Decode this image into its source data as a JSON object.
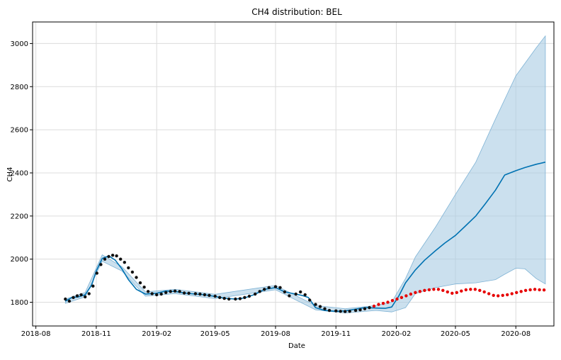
{
  "chart_data": {
    "type": "line",
    "title": "CH4 distribution: BEL",
    "xlabel": "Date",
    "ylabel": "CH4",
    "xlim": [
      "2018-07-27",
      "2020-09-28"
    ],
    "ylim": [
      1690,
      3100
    ],
    "grid": true,
    "x_ticks": [
      "2018-08",
      "2018-11",
      "2019-02",
      "2019-05",
      "2019-08",
      "2019-11",
      "2020-02",
      "2020-05",
      "2020-08"
    ],
    "y_ticks": [
      1800,
      2000,
      2200,
      2400,
      2600,
      2800,
      3000
    ],
    "colors": {
      "forecast": "#0072B2",
      "band": "#a9cce3",
      "band_edge": "#7fb3d5",
      "observed": "#111111",
      "actual_future": "#e60000",
      "grid": "#dcdcdc"
    },
    "series": [
      {
        "kind": "forecast",
        "x": [
          "2018-09-15",
          "2018-09-25",
          "2018-10-05",
          "2018-10-15",
          "2018-10-25",
          "2018-11-01",
          "2018-11-10",
          "2018-11-20",
          "2018-11-30",
          "2018-12-10",
          "2018-12-20",
          "2019-01-01",
          "2019-01-15",
          "2019-02-01",
          "2019-02-15",
          "2019-03-01",
          "2019-03-15",
          "2019-04-01",
          "2019-04-15",
          "2019-05-01",
          "2019-05-15",
          "2019-06-01",
          "2019-06-15",
          "2019-07-01",
          "2019-07-15",
          "2019-08-01",
          "2019-08-15",
          "2019-09-01",
          "2019-09-10",
          "2019-09-20",
          "2019-10-01",
          "2019-10-15",
          "2019-11-01",
          "2019-11-15",
          "2019-12-01",
          "2019-12-15",
          "2020-01-01",
          "2020-01-15",
          "2020-01-25",
          "2020-02-05",
          "2020-02-15",
          "2020-03-01",
          "2020-03-15",
          "2020-04-01",
          "2020-04-15",
          "2020-05-01",
          "2020-05-15",
          "2020-06-01",
          "2020-06-15",
          "2020-07-01",
          "2020-07-15",
          "2020-08-01",
          "2020-08-15",
          "2020-09-01",
          "2020-09-15"
        ],
        "y": [
          1805,
          1822,
          1825,
          1835,
          1880,
          1945,
          2003,
          2015,
          1995,
          1955,
          1905,
          1860,
          1838,
          1842,
          1852,
          1850,
          1843,
          1838,
          1835,
          1827,
          1819,
          1815,
          1820,
          1837,
          1860,
          1868,
          1848,
          1838,
          1832,
          1822,
          1775,
          1762,
          1758,
          1760,
          1768,
          1775,
          1773,
          1772,
          1778,
          1830,
          1890,
          1950,
          1995,
          2040,
          2075,
          2110,
          2150,
          2200,
          2255,
          2320,
          2390,
          2410,
          2425,
          2440,
          2450
        ]
      },
      {
        "kind": "band_upper",
        "x": [
          "2018-09-15",
          "2018-10-15",
          "2018-11-10",
          "2018-12-10",
          "2019-01-15",
          "2019-03-01",
          "2019-05-01",
          "2019-08-01",
          "2019-10-01",
          "2019-11-15",
          "2020-01-01",
          "2020-01-25",
          "2020-02-15",
          "2020-03-01",
          "2020-04-01",
          "2020-05-01",
          "2020-06-01",
          "2020-07-01",
          "2020-08-01",
          "2020-09-01",
          "2020-09-15"
        ],
        "y": [
          1815,
          1845,
          2020,
          1965,
          1848,
          1860,
          1837,
          1878,
          1785,
          1770,
          1785,
          1800,
          1910,
          2010,
          2150,
          2300,
          2450,
          2650,
          2850,
          2980,
          3035
        ]
      },
      {
        "kind": "band_lower",
        "x": [
          "2018-09-15",
          "2018-10-15",
          "2018-11-10",
          "2018-12-10",
          "2019-01-15",
          "2019-03-01",
          "2019-05-01",
          "2019-08-01",
          "2019-10-01",
          "2019-11-15",
          "2020-01-01",
          "2020-01-25",
          "2020-02-15",
          "2020-03-01",
          "2020-04-01",
          "2020-05-01",
          "2020-06-01",
          "2020-07-01",
          "2020-07-15",
          "2020-08-01",
          "2020-08-15",
          "2020-09-01",
          "2020-09-15"
        ],
        "y": [
          1795,
          1825,
          1990,
          1945,
          1828,
          1840,
          1817,
          1858,
          1765,
          1750,
          1762,
          1755,
          1775,
          1840,
          1868,
          1885,
          1890,
          1905,
          1930,
          1958,
          1955,
          1910,
          1885
        ]
      },
      {
        "kind": "observed",
        "x": [
          "2018-09-15",
          "2018-09-21",
          "2018-09-27",
          "2018-10-03",
          "2018-10-09",
          "2018-10-15",
          "2018-10-21",
          "2018-10-27",
          "2018-11-02",
          "2018-11-08",
          "2018-11-14",
          "2018-11-20",
          "2018-11-26",
          "2018-12-02",
          "2018-12-08",
          "2018-12-14",
          "2018-12-20",
          "2018-12-26",
          "2019-01-01",
          "2019-01-07",
          "2019-01-13",
          "2019-01-19",
          "2019-01-25",
          "2019-02-01",
          "2019-02-08",
          "2019-02-15",
          "2019-02-22",
          "2019-03-01",
          "2019-03-08",
          "2019-03-15",
          "2019-03-22",
          "2019-04-01",
          "2019-04-08",
          "2019-04-15",
          "2019-04-22",
          "2019-05-01",
          "2019-05-08",
          "2019-05-15",
          "2019-05-22",
          "2019-06-01",
          "2019-06-08",
          "2019-06-15",
          "2019-06-22",
          "2019-07-01",
          "2019-07-08",
          "2019-07-15",
          "2019-07-22",
          "2019-08-01",
          "2019-08-08",
          "2019-08-15",
          "2019-08-22",
          "2019-09-01",
          "2019-09-08",
          "2019-09-15",
          "2019-09-22",
          "2019-10-01",
          "2019-10-08",
          "2019-10-15",
          "2019-10-22",
          "2019-11-01",
          "2019-11-08",
          "2019-11-15",
          "2019-11-22",
          "2019-12-01",
          "2019-12-08",
          "2019-12-15",
          "2019-12-22"
        ],
        "y": [
          1815,
          1805,
          1822,
          1830,
          1835,
          1825,
          1840,
          1875,
          1935,
          1975,
          2000,
          2012,
          2018,
          2015,
          2000,
          1985,
          1960,
          1940,
          1915,
          1890,
          1870,
          1850,
          1840,
          1835,
          1838,
          1845,
          1850,
          1852,
          1850,
          1843,
          1842,
          1840,
          1838,
          1835,
          1832,
          1828,
          1822,
          1818,
          1815,
          1815,
          1817,
          1822,
          1828,
          1838,
          1850,
          1860,
          1868,
          1872,
          1868,
          1848,
          1830,
          1838,
          1848,
          1835,
          1810,
          1790,
          1780,
          1770,
          1762,
          1760,
          1758,
          1757,
          1758,
          1762,
          1765,
          1770,
          1775
        ]
      },
      {
        "kind": "actual_future",
        "x": [
          "2019-12-29",
          "2020-01-05",
          "2020-01-12",
          "2020-01-19",
          "2020-01-26",
          "2020-02-02",
          "2020-02-09",
          "2020-02-16",
          "2020-02-23",
          "2020-03-01",
          "2020-03-08",
          "2020-03-15",
          "2020-03-22",
          "2020-03-29",
          "2020-04-05",
          "2020-04-12",
          "2020-04-19",
          "2020-04-26",
          "2020-05-03",
          "2020-05-10",
          "2020-05-17",
          "2020-05-24",
          "2020-05-31",
          "2020-06-07",
          "2020-06-14",
          "2020-06-21",
          "2020-06-28",
          "2020-07-05",
          "2020-07-12",
          "2020-07-19",
          "2020-07-26",
          "2020-08-02",
          "2020-08-09",
          "2020-08-16",
          "2020-08-23",
          "2020-08-30",
          "2020-09-06",
          "2020-09-13"
        ],
        "y": [
          1782,
          1790,
          1795,
          1800,
          1808,
          1815,
          1822,
          1830,
          1838,
          1845,
          1850,
          1855,
          1858,
          1860,
          1860,
          1855,
          1848,
          1842,
          1845,
          1852,
          1858,
          1860,
          1860,
          1855,
          1848,
          1840,
          1832,
          1830,
          1832,
          1835,
          1840,
          1845,
          1850,
          1855,
          1858,
          1860,
          1858,
          1857
        ]
      }
    ]
  }
}
